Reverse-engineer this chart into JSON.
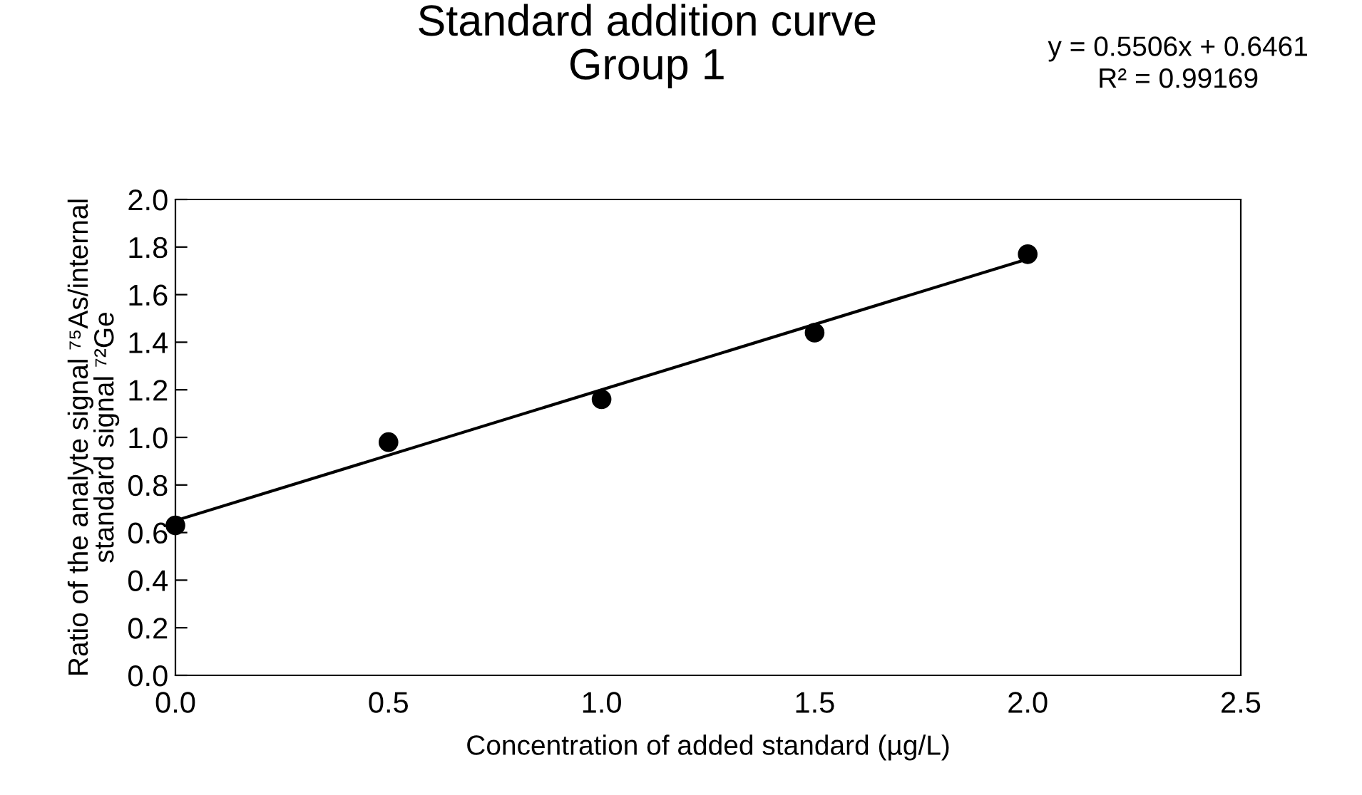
{
  "chart_data": {
    "type": "scatter",
    "title": "Standard addition curve\nGroup 1",
    "xlabel": "Concentration of added standard (µg/L)",
    "ylabel": "Ratio of the analyte signal ⁷⁵As/internal\nstandard signal ⁷²Ge",
    "x": [
      0,
      0.5,
      1.0,
      1.5,
      2.0
    ],
    "series": [
      {
        "color": "#000000",
        "marker": "circle",
        "values": [
          0.63,
          0.98,
          1.16,
          1.44,
          1.77
        ]
      },
      {
        "type": "line",
        "color": "#000000",
        "marker": "none",
        "x": [
          0,
          2.0
        ],
        "values": [
          0.65,
          1.75
        ]
      }
    ],
    "annotations": [
      "y = 0.5506x + 0.6461\nR² = 0.99169"
    ],
    "xlim": [
      0,
      2.5
    ],
    "xticks": [
      {
        "value": 0,
        "label": "0.0"
      },
      {
        "value": 0.5,
        "label": "0.5"
      },
      {
        "value": 1.0,
        "label": "1.0"
      },
      {
        "value": 1.5,
        "label": "1.5"
      },
      {
        "value": 2.0,
        "label": "2.0"
      },
      {
        "value": 2.5,
        "label": "2.5"
      }
    ],
    "ylim": [
      0,
      2.0
    ],
    "yticks": [
      {
        "value": 0,
        "label": "0.0"
      },
      {
        "value": 0.2,
        "label": "0.2"
      },
      {
        "value": 0.4,
        "label": "0.4"
      },
      {
        "value": 0.6,
        "label": "0.6"
      },
      {
        "value": 0.8,
        "label": "0.8"
      },
      {
        "value": 1.0,
        "label": "1.0"
      },
      {
        "value": 1.2,
        "label": "1.2"
      },
      {
        "value": 1.4,
        "label": "1.4"
      },
      {
        "value": 1.6,
        "label": "1.6"
      },
      {
        "value": 1.8,
        "label": "1.8"
      },
      {
        "value": 2.0,
        "label": "2.0"
      }
    ],
    "grid": false,
    "legend": false
  }
}
